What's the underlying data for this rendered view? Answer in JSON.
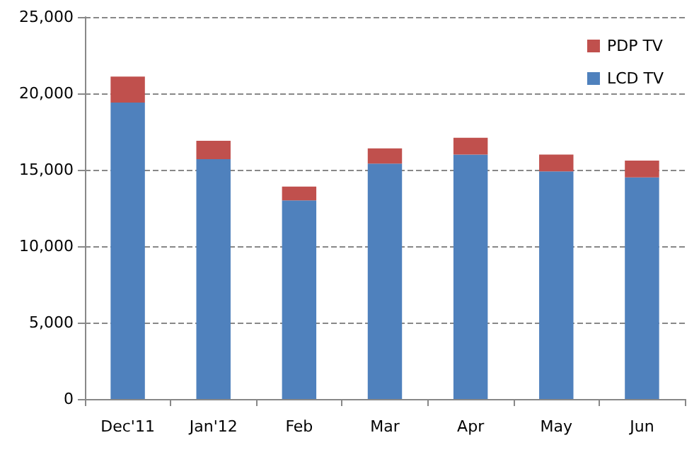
{
  "chart_data": {
    "type": "bar",
    "stacked": true,
    "categories": [
      "Dec'11",
      "Jan'12",
      "Feb",
      "Mar",
      "Apr",
      "May",
      "Jun"
    ],
    "series": [
      {
        "name": "LCD TV",
        "color": "#4f81bd",
        "values": [
          19400,
          15700,
          13000,
          15400,
          16000,
          14900,
          14500
        ]
      },
      {
        "name": "PDP TV",
        "color": "#c0504d",
        "values": [
          1700,
          1200,
          900,
          1000,
          1100,
          1100,
          1100
        ]
      }
    ],
    "ylim": [
      0,
      25000
    ],
    "yticks": [
      0,
      {
        "value": 5000,
        "label": "5,000"
      },
      {
        "value": 10000,
        "label": "10,000"
      },
      {
        "value": 15000,
        "label": "15,000"
      },
      {
        "value": 20000,
        "label": "20,000"
      },
      {
        "value": 25000,
        "label": "25,000"
      }
    ],
    "grid": "y",
    "legend": "top right"
  }
}
